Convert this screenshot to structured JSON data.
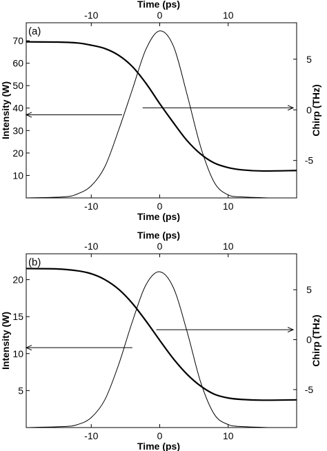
{
  "chart_data": [
    {
      "type": "line",
      "panel_label": "(a)",
      "xlabel": "Time (ps)",
      "x2label": "Time (ps)",
      "ylabel": "Intensity (W)",
      "y2label": "Chirp (THz)",
      "xlim": [
        -19.5,
        20
      ],
      "ylim": [
        0,
        78
      ],
      "y2lim": [
        -8.7,
        8.6
      ],
      "xticks": [
        -10,
        0,
        10
      ],
      "x2ticks": [
        -10,
        0,
        10
      ],
      "yticks": [
        10,
        20,
        30,
        40,
        50,
        60,
        70
      ],
      "y2ticks": [
        -5,
        0,
        5
      ],
      "grid": false,
      "series": [
        {
          "axis": "left",
          "style": "thick",
          "x": [
            -19.5,
            -15,
            -12,
            -10,
            -8,
            -6,
            -4,
            -2,
            0,
            2,
            4,
            6,
            8,
            10,
            12,
            15,
            20
          ],
          "y": [
            69.5,
            69.4,
            69.0,
            68.0,
            66.5,
            63.5,
            58.5,
            51.0,
            42.0,
            33.5,
            25.5,
            19.5,
            15.5,
            13.5,
            12.5,
            12.0,
            12.2
          ]
        },
        {
          "axis": "right",
          "style": "thin",
          "x": [
            -19.5,
            -14,
            -12,
            -10,
            -8,
            -6,
            -4,
            -2,
            0,
            2,
            4,
            6,
            8,
            10,
            12,
            16
          ],
          "y": [
            -8.7,
            -8.6,
            -8.3,
            -7.5,
            -5.6,
            -2.0,
            2.0,
            6.0,
            7.8,
            6.3,
            1.5,
            -3.7,
            -7.2,
            -8.4,
            -8.6,
            -8.7
          ]
        }
      ],
      "arrows": [
        {
          "points": "left",
          "y_axis": "left",
          "y": 37,
          "x_from": -5.5,
          "x_to": -19.5
        },
        {
          "points": "right",
          "y_axis": "right",
          "y": 0.2,
          "x_from": -2.5,
          "x_to": 19.5
        }
      ]
    },
    {
      "type": "line",
      "panel_label": "(b)",
      "xlabel": "Time (ps)",
      "x2label": "Time (ps)",
      "ylabel": "Intensity (W)",
      "y2label": "Chirp (THz)",
      "xlim": [
        -19.5,
        20
      ],
      "ylim": [
        0,
        23.5
      ],
      "y2lim": [
        -8.8,
        8.6
      ],
      "xticks": [
        -10,
        0,
        10
      ],
      "x2ticks": [
        -10,
        0,
        10
      ],
      "yticks": [
        5,
        10,
        15,
        20
      ],
      "y2ticks": [
        -5,
        0,
        5
      ],
      "grid": false,
      "series": [
        {
          "axis": "left",
          "style": "thick",
          "x": [
            -19.5,
            -15,
            -12,
            -10,
            -8,
            -6,
            -4,
            -2,
            0,
            2,
            4,
            6,
            8,
            10,
            12,
            15,
            20
          ],
          "y": [
            21.5,
            21.45,
            21.2,
            20.8,
            20.0,
            18.7,
            16.8,
            14.4,
            11.8,
            9.3,
            7.2,
            5.6,
            4.5,
            4.0,
            3.8,
            3.7,
            3.75
          ]
        },
        {
          "axis": "right",
          "style": "thin",
          "x": [
            -19.5,
            -14,
            -12,
            -10,
            -8,
            -6,
            -4,
            -2,
            0,
            2,
            4,
            6,
            8,
            10,
            12,
            16
          ],
          "y": [
            -8.8,
            -8.7,
            -8.5,
            -7.8,
            -6.0,
            -2.5,
            1.8,
            5.5,
            6.8,
            5.2,
            0.8,
            -4.3,
            -7.5,
            -8.5,
            -8.7,
            -8.8
          ]
        }
      ],
      "arrows": [
        {
          "points": "left",
          "y_axis": "left",
          "y": 10.8,
          "x_from": -4.0,
          "x_to": -19.5
        },
        {
          "points": "right",
          "y_axis": "right",
          "y": 1.0,
          "x_from": -0.5,
          "x_to": 19.5
        }
      ]
    }
  ]
}
